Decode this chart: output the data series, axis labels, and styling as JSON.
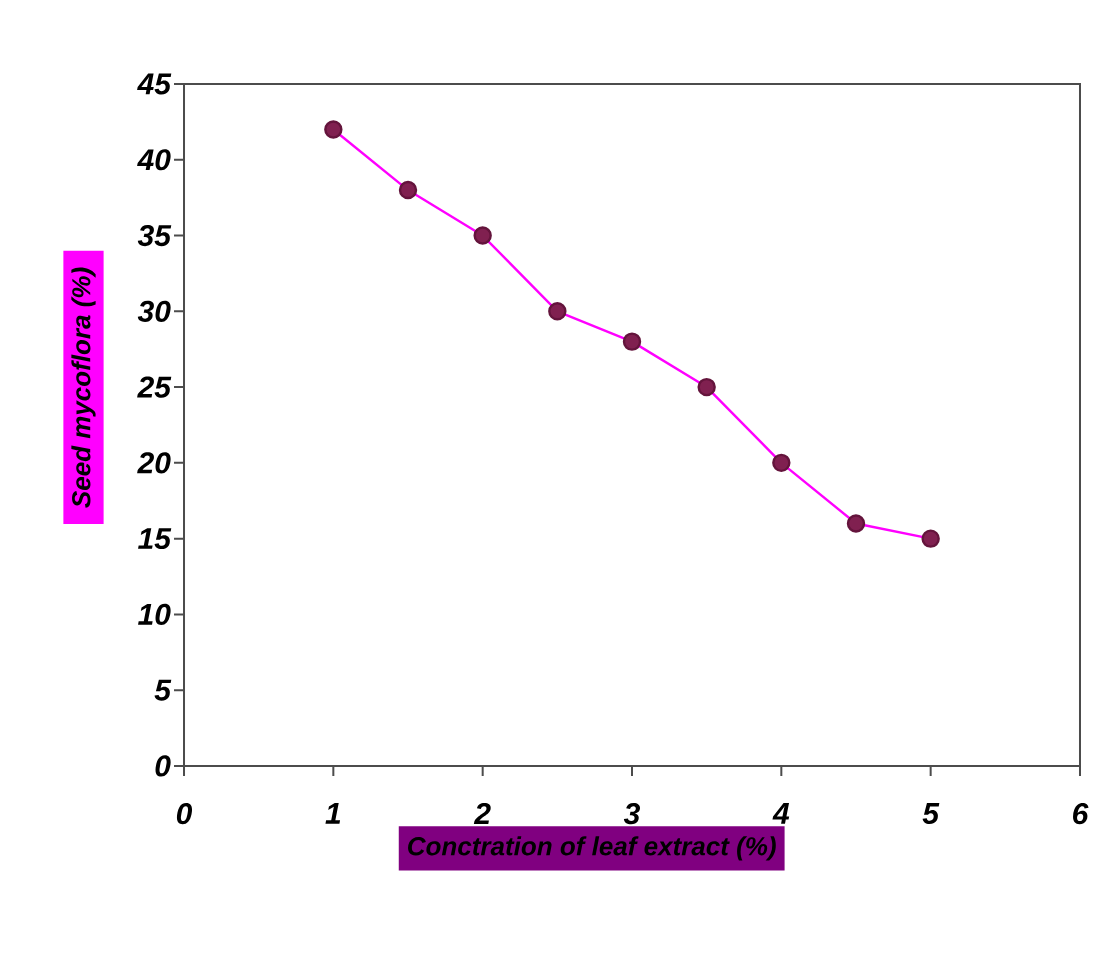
{
  "chart_data": {
    "type": "line",
    "xlabel": "Conctration of leaf extract (%)",
    "ylabel": "Seed mycoflora (%)",
    "x": [
      1,
      1.5,
      2,
      2.5,
      3,
      3.5,
      4,
      4.5,
      5
    ],
    "series": [
      {
        "color": "#ff00ff",
        "values": [
          42,
          38,
          35,
          30,
          28,
          25,
          20,
          16,
          15
        ]
      }
    ],
    "xlim": [
      0,
      6
    ],
    "xticks": [
      0,
      1,
      2,
      3,
      4,
      5,
      6
    ],
    "ylim": [
      0,
      45
    ],
    "yticks": [
      0,
      5,
      10,
      15,
      20,
      25,
      30,
      35,
      40,
      45
    ],
    "marker": "circle",
    "line_style": "solid"
  }
}
